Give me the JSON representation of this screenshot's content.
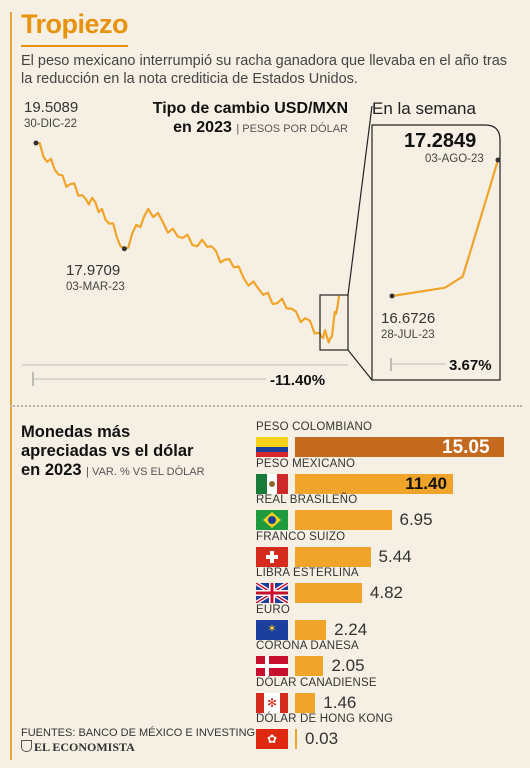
{
  "header": {
    "title": "Tropiezo",
    "intro": "El peso mexicano interrumpió su racha ganadora que llevaba en el año tras la reducción en la nota crediticia de Estados Unidos."
  },
  "main_chart": {
    "title_line1": "Tipo de cambio USD/MXN",
    "title_line2": "en 2023",
    "subtitle": "| PESOS POR DÓLAR",
    "start_value": "19.5089",
    "start_date": "30-DIC-22",
    "low_value": "17.9709",
    "low_date": "03-MAR-23",
    "change": "-11.40%"
  },
  "week_chart": {
    "title": "En la semana",
    "end_value": "17.2849",
    "end_date": "03-AGO-23",
    "start_value": "16.6726",
    "start_date": "28-JUL-23",
    "change": "3.67%"
  },
  "currencies": {
    "title_line1": "Monedas más",
    "title_line2": "apreciadas vs el dólar",
    "title_line3": "en 2023",
    "subtitle": "| VAR. % VS EL DÓLAR",
    "items": [
      {
        "name": "PESO COLOMBIANO",
        "value": "15.05",
        "flag": "colombia-flag"
      },
      {
        "name": "PESO MEXICANO",
        "value": "11.40",
        "flag": "mexico-flag"
      },
      {
        "name": "REAL BRASILEÑO",
        "value": "6.95",
        "flag": "brazil-flag"
      },
      {
        "name": "FRANCO SUIZO",
        "value": "5.44",
        "flag": "switzerland-flag"
      },
      {
        "name": "LIBRA ESTERLINA",
        "value": "4.82",
        "flag": "uk-flag"
      },
      {
        "name": "EURO",
        "value": "2.24",
        "flag": "eu-flag"
      },
      {
        "name": "CORONA DANESA",
        "value": "2.05",
        "flag": "denmark-flag"
      },
      {
        "name": "DÓLAR CANADIENSE",
        "value": "1.46",
        "flag": "canada-flag"
      },
      {
        "name": "DÓLAR DE HONG KONG",
        "value": "0.03",
        "flag": "hongkong-flag"
      }
    ]
  },
  "footer": {
    "sources": "FUENTES: BANCO DE MÉXICO E INVESTING",
    "logo": "EL ECONOMISTA"
  },
  "colors": {
    "accent": "#e8930f",
    "bar": "#f0a42a",
    "bar_highlight": "#c46a1e",
    "line": "#f0a42a"
  },
  "chart_data": [
    {
      "type": "line",
      "title": "Tipo de cambio USD/MXN en 2023",
      "ylabel": "PESOS POR DÓLAR",
      "x": [
        "2022-12-30",
        "2023-01-15",
        "2023-02-01",
        "2023-02-15",
        "2023-03-03",
        "2023-03-20",
        "2023-04-10",
        "2023-05-01",
        "2023-05-20",
        "2023-06-10",
        "2023-06-30",
        "2023-07-20",
        "2023-07-28",
        "2023-08-03"
      ],
      "y": [
        19.5089,
        19.05,
        18.75,
        18.55,
        17.9709,
        18.55,
        18.15,
        18.0,
        17.7,
        17.3,
        17.1,
        16.75,
        16.6726,
        17.2849
      ],
      "annotations": [
        {
          "x": "2022-12-30",
          "y": 19.5089
        },
        {
          "x": "2023-03-03",
          "y": 17.9709
        }
      ],
      "change_pct": -11.4
    },
    {
      "type": "line",
      "title": "En la semana",
      "x": [
        "2023-07-28",
        "2023-07-31",
        "2023-08-01",
        "2023-08-02",
        "2023-08-03"
      ],
      "y": [
        16.6726,
        16.71,
        16.76,
        17.02,
        17.2849
      ],
      "change_pct": 3.67
    },
    {
      "type": "bar",
      "title": "Monedas más apreciadas vs el dólar en 2023",
      "ylabel": "VAR. % VS EL DÓLAR",
      "categories": [
        "PESO COLOMBIANO",
        "PESO MEXICANO",
        "REAL BRASILEÑO",
        "FRANCO SUIZO",
        "LIBRA ESTERLINA",
        "EURO",
        "CORONA DANESA",
        "DÓLAR CANADIENSE",
        "DÓLAR DE HONG KONG"
      ],
      "values": [
        15.05,
        11.4,
        6.95,
        5.44,
        4.82,
        2.24,
        2.05,
        1.46,
        0.03
      ]
    }
  ]
}
